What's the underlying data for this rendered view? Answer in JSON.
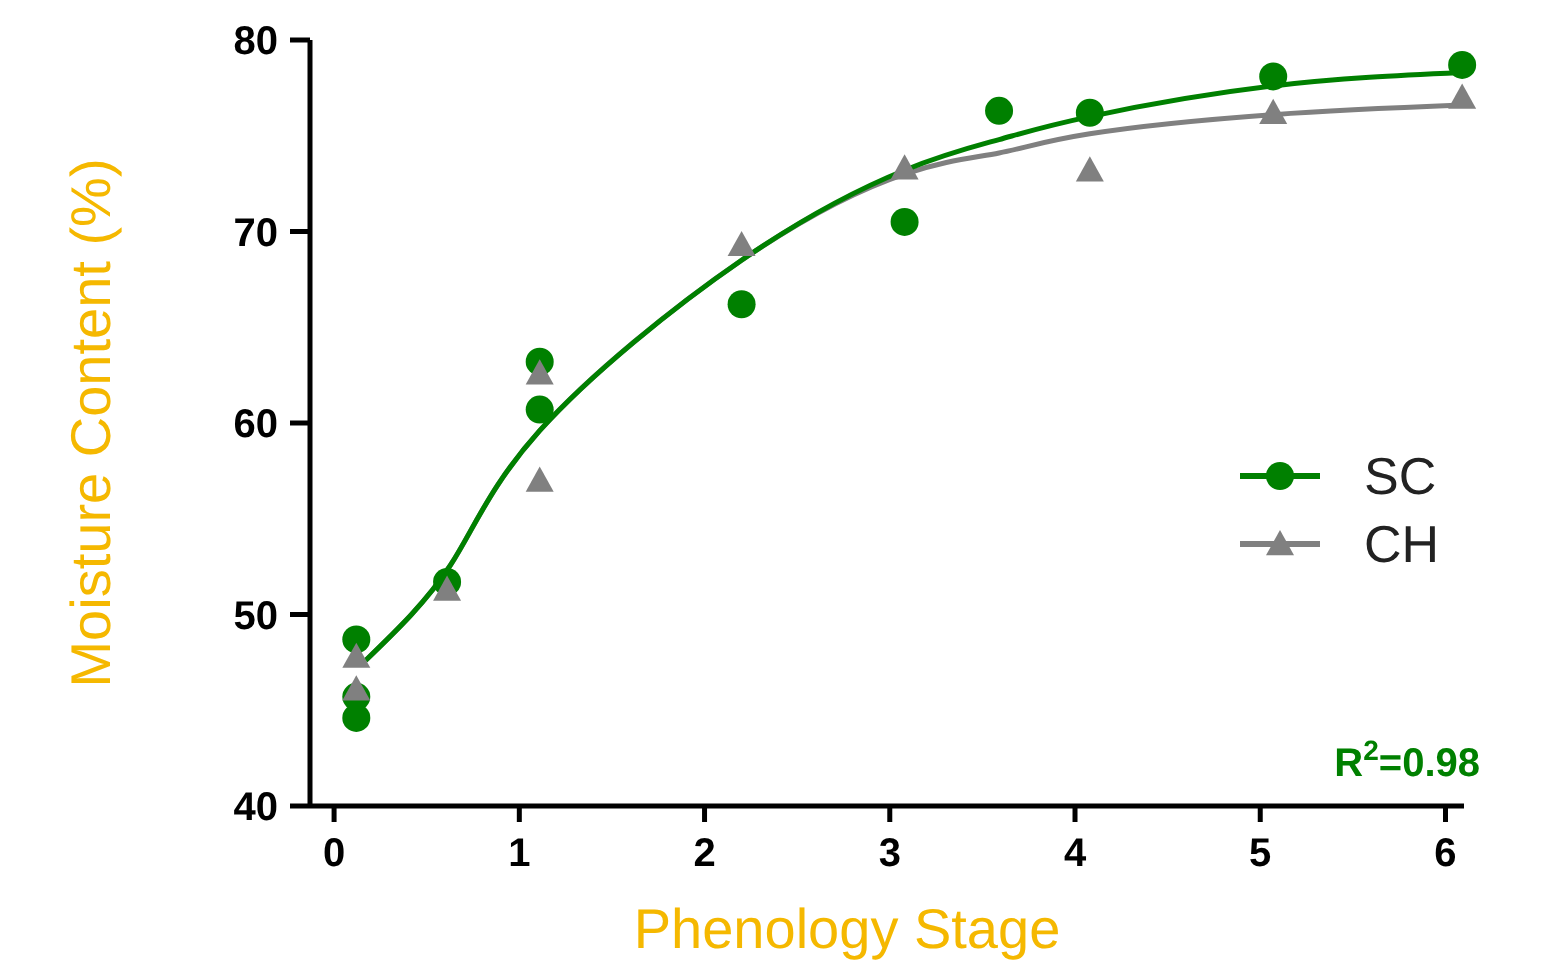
{
  "chart_data": {
    "type": "scatter",
    "xlabel": "Phenology Stage",
    "ylabel": "Moisture Content (%)",
    "xlim": [
      -0.13,
      6.1
    ],
    "ylim": [
      40,
      80
    ],
    "xticks": [
      0,
      1,
      2,
      3,
      4,
      5,
      6
    ],
    "yticks": [
      40,
      50,
      60,
      70,
      80
    ],
    "grid": false,
    "legend": "right",
    "annotations": [
      "R$^{2}$=0.98"
    ],
    "series": [
      {
        "name": "SC",
        "marker": "circle",
        "color": "#008000",
        "x": [
          0.12,
          0.12,
          0.12,
          0.61,
          1.11,
          1.11,
          2.2,
          3.08,
          3.59,
          4.08,
          5.07,
          6.09
        ],
        "values": [
          48.7,
          45.7,
          44.6,
          51.7,
          63.2,
          60.7,
          66.2,
          70.5,
          76.3,
          76.2,
          78.1,
          78.7
        ]
      },
      {
        "name": "CH",
        "marker": "triangle",
        "color": "#808080",
        "x": [
          0.12,
          0.12,
          0.61,
          1.11,
          1.11,
          2.2,
          3.08,
          4.08,
          5.07,
          6.09
        ],
        "values": [
          47.8,
          46.1,
          51.3,
          62.6,
          57.0,
          69.3,
          73.3,
          73.2,
          76.2,
          77.0
        ]
      },
      {
        "type": "line",
        "marker": "none",
        "color": "#808080",
        "x": [
          0.17,
          0.63,
          1.11,
          2.2,
          3.08,
          3.59,
          4.08,
          5.07,
          6.09
        ],
        "values": [
          47.6,
          52.6,
          59.6,
          68.5,
          73.0,
          74.1,
          75.1,
          76.1,
          76.6
        ]
      },
      {
        "type": "line",
        "marker": "none",
        "color": "#008000",
        "x": [
          0.17,
          0.63,
          1.11,
          2.2,
          3.08,
          3.59,
          4.08,
          5.07,
          6.09
        ],
        "values": [
          47.6,
          52.6,
          59.6,
          68.5,
          73.2,
          74.8,
          76.0,
          77.6,
          78.3
        ]
      }
    ]
  }
}
